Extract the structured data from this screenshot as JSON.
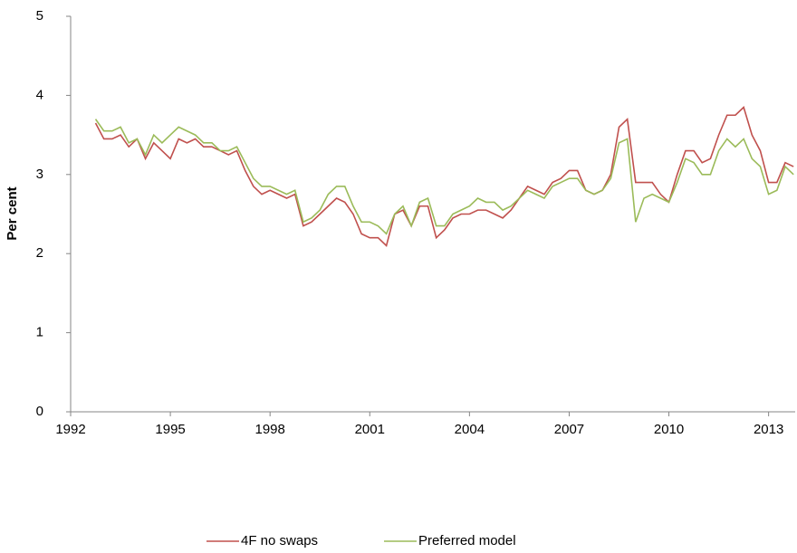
{
  "chart_data": {
    "type": "line",
    "ylabel": "Per cent",
    "x": [
      1992.75,
      1993,
      1993.25,
      1993.5,
      1993.75,
      1994,
      1994.25,
      1994.5,
      1994.75,
      1995,
      1995.25,
      1995.5,
      1995.75,
      1996,
      1996.25,
      1996.5,
      1996.75,
      1997,
      1997.25,
      1997.5,
      1997.75,
      1998,
      1998.25,
      1998.5,
      1998.75,
      1999,
      1999.25,
      1999.5,
      1999.75,
      2000,
      2000.25,
      2000.5,
      2000.75,
      2001,
      2001.25,
      2001.5,
      2001.75,
      2002,
      2002.25,
      2002.5,
      2002.75,
      2003,
      2003.25,
      2003.5,
      2003.75,
      2004,
      2004.25,
      2004.5,
      2004.75,
      2005,
      2005.25,
      2005.5,
      2005.75,
      2006,
      2006.25,
      2006.5,
      2006.75,
      2007,
      2007.25,
      2007.5,
      2007.75,
      2008,
      2008.25,
      2008.5,
      2008.75,
      2009,
      2009.25,
      2009.5,
      2009.75,
      2010,
      2010.25,
      2010.5,
      2010.75,
      2011,
      2011.25,
      2011.5,
      2011.75,
      2012,
      2012.25,
      2012.5,
      2012.75,
      2013,
      2013.25,
      2013.5,
      2013.75
    ],
    "series": [
      {
        "name": "4F no swaps",
        "color": "#c0504d",
        "values": [
          3.65,
          3.45,
          3.45,
          3.5,
          3.35,
          3.45,
          3.2,
          3.4,
          3.3,
          3.2,
          3.45,
          3.4,
          3.45,
          3.35,
          3.35,
          3.3,
          3.25,
          3.3,
          3.05,
          2.85,
          2.75,
          2.8,
          2.75,
          2.7,
          2.75,
          2.35,
          2.4,
          2.5,
          2.6,
          2.7,
          2.65,
          2.5,
          2.25,
          2.2,
          2.2,
          2.1,
          2.5,
          2.55,
          2.35,
          2.6,
          2.6,
          2.2,
          2.3,
          2.45,
          2.5,
          2.5,
          2.55,
          2.55,
          2.5,
          2.45,
          2.55,
          2.7,
          2.85,
          2.8,
          2.75,
          2.9,
          2.95,
          3.05,
          3.05,
          2.8,
          2.75,
          2.8,
          3.0,
          3.6,
          3.7,
          2.9,
          2.9,
          2.9,
          2.75,
          2.65,
          3.0,
          3.3,
          3.3,
          3.15,
          3.2,
          3.5,
          3.75,
          3.75,
          3.85,
          3.5,
          3.3,
          2.9,
          2.9,
          3.15,
          3.1
        ]
      },
      {
        "name": "Preferred model",
        "color": "#9bbb59",
        "values": [
          3.7,
          3.55,
          3.55,
          3.6,
          3.4,
          3.45,
          3.25,
          3.5,
          3.4,
          3.5,
          3.6,
          3.55,
          3.5,
          3.4,
          3.4,
          3.3,
          3.3,
          3.35,
          3.15,
          2.95,
          2.85,
          2.85,
          2.8,
          2.75,
          2.8,
          2.4,
          2.45,
          2.55,
          2.75,
          2.85,
          2.85,
          2.6,
          2.4,
          2.4,
          2.35,
          2.25,
          2.5,
          2.6,
          2.35,
          2.65,
          2.7,
          2.35,
          2.35,
          2.5,
          2.55,
          2.6,
          2.7,
          2.65,
          2.65,
          2.55,
          2.6,
          2.7,
          2.8,
          2.75,
          2.7,
          2.85,
          2.9,
          2.95,
          2.95,
          2.8,
          2.75,
          2.8,
          2.95,
          3.4,
          3.45,
          2.4,
          2.7,
          2.75,
          2.7,
          2.65,
          2.9,
          3.2,
          3.15,
          3.0,
          3.0,
          3.3,
          3.45,
          3.35,
          3.45,
          3.2,
          3.1,
          2.75,
          2.8,
          3.1,
          3.0
        ]
      }
    ],
    "xlim": [
      1992,
      2013.8
    ],
    "xticks": [
      1992,
      1995,
      1998,
      2001,
      2004,
      2007,
      2010,
      2013
    ],
    "ylim": [
      0,
      5
    ],
    "yticks": [
      0,
      1,
      2,
      3,
      4,
      5
    ],
    "legend": "bottom"
  }
}
